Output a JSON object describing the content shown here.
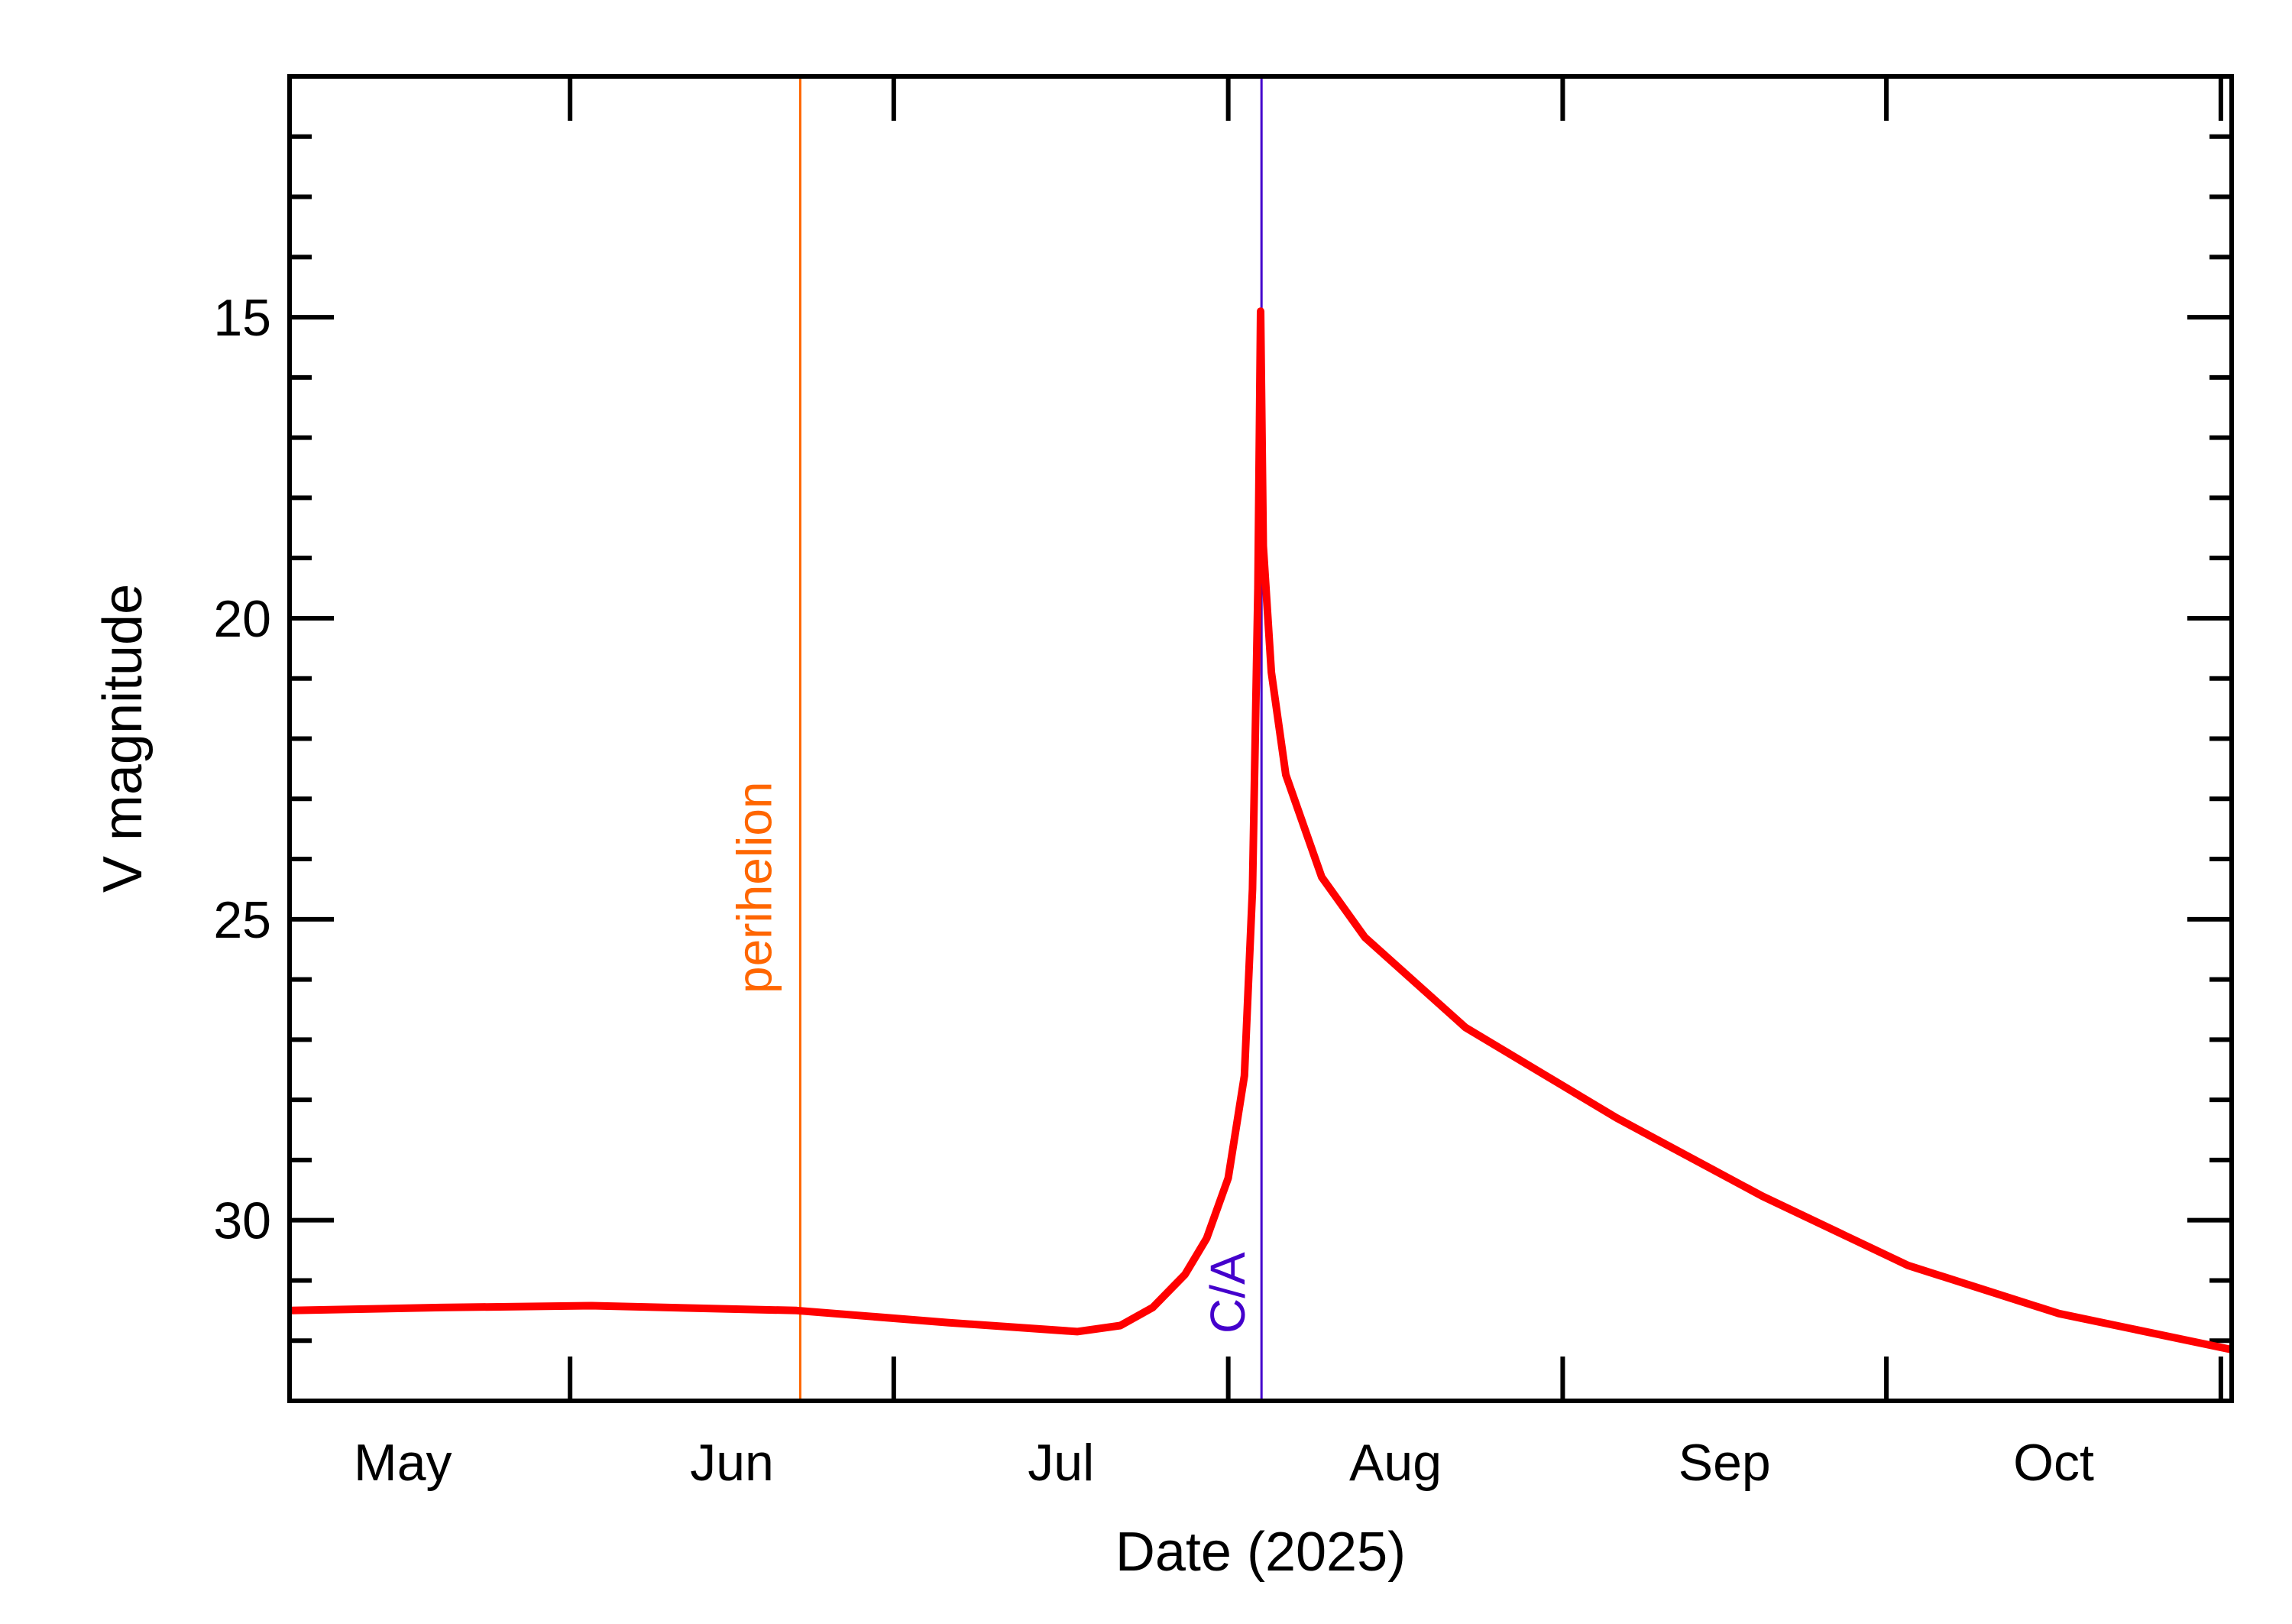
{
  "chart_data": {
    "type": "line",
    "title": "",
    "xlabel": "Date (2025)",
    "ylabel": "V magnitude",
    "xlim": [
      "2025-05-06T00:00:00",
      "2025-11-02T00:00:00"
    ],
    "ylim": [
      33,
      11
    ],
    "y_inverted": true,
    "grid": false,
    "x_major_ticks": [
      "2025-06-01",
      "2025-07-01",
      "2025-08-01",
      "2025-09-01",
      "2025-10-01",
      "2025-11-01"
    ],
    "x_tick_labels": [
      {
        "label": "May",
        "at": "2025-05-16T12:00:00"
      },
      {
        "label": "Jun",
        "at": "2025-06-16T00:00:00"
      },
      {
        "label": "Jul",
        "at": "2025-07-16T12:00:00"
      },
      {
        "label": "Aug",
        "at": "2025-08-16T12:00:00"
      },
      {
        "label": "Sep",
        "at": "2025-09-16T00:00:00"
      },
      {
        "label": "Oct",
        "at": "2025-10-16T12:00:00"
      }
    ],
    "y_major_ticks": [
      15,
      20,
      25,
      30
    ],
    "y_minor_step": 1,
    "series": [
      {
        "color": "#ff0000",
        "points": [
          [
            "2025-05-06T00:00:00",
            31.5
          ],
          [
            "2025-05-20T00:00:00",
            31.45
          ],
          [
            "2025-06-03T00:00:00",
            31.42
          ],
          [
            "2025-06-22T00:00:00",
            31.5
          ],
          [
            "2025-07-06T00:00:00",
            31.7
          ],
          [
            "2025-07-18T00:00:00",
            31.85
          ],
          [
            "2025-07-22T00:00:00",
            31.75
          ],
          [
            "2025-07-25T00:00:00",
            31.45
          ],
          [
            "2025-07-28T00:00:00",
            30.9
          ],
          [
            "2025-07-30T00:00:00",
            30.3
          ],
          [
            "2025-08-01T00:00:00",
            29.3
          ],
          [
            "2025-08-02T12:00:00",
            27.6
          ],
          [
            "2025-08-03T06:00:00",
            24.5
          ],
          [
            "2025-08-03T18:00:00",
            19.5
          ],
          [
            "2025-08-04T00:00:00",
            14.9
          ],
          [
            "2025-08-04T06:00:00",
            18.8
          ],
          [
            "2025-08-05T00:00:00",
            20.9
          ],
          [
            "2025-08-06T08:00:00",
            22.6
          ],
          [
            "2025-08-09T16:00:00",
            24.3
          ],
          [
            "2025-08-13T16:00:00",
            25.3
          ],
          [
            "2025-08-23T00:00:00",
            26.8
          ],
          [
            "2025-09-06T00:00:00",
            28.3
          ],
          [
            "2025-09-19T12:00:00",
            29.6
          ],
          [
            "2025-10-03T00:00:00",
            30.75
          ],
          [
            "2025-10-17T00:00:00",
            31.55
          ],
          [
            "2025-11-02T00:00:00",
            32.15
          ]
        ]
      }
    ],
    "annotations": [
      {
        "label": "perihelion",
        "date": "2025-06-22T08:00:00",
        "color": "#ff6600"
      },
      {
        "label": "C/A",
        "date": "2025-08-04T02:00:00",
        "color": "#4400cc"
      }
    ]
  }
}
